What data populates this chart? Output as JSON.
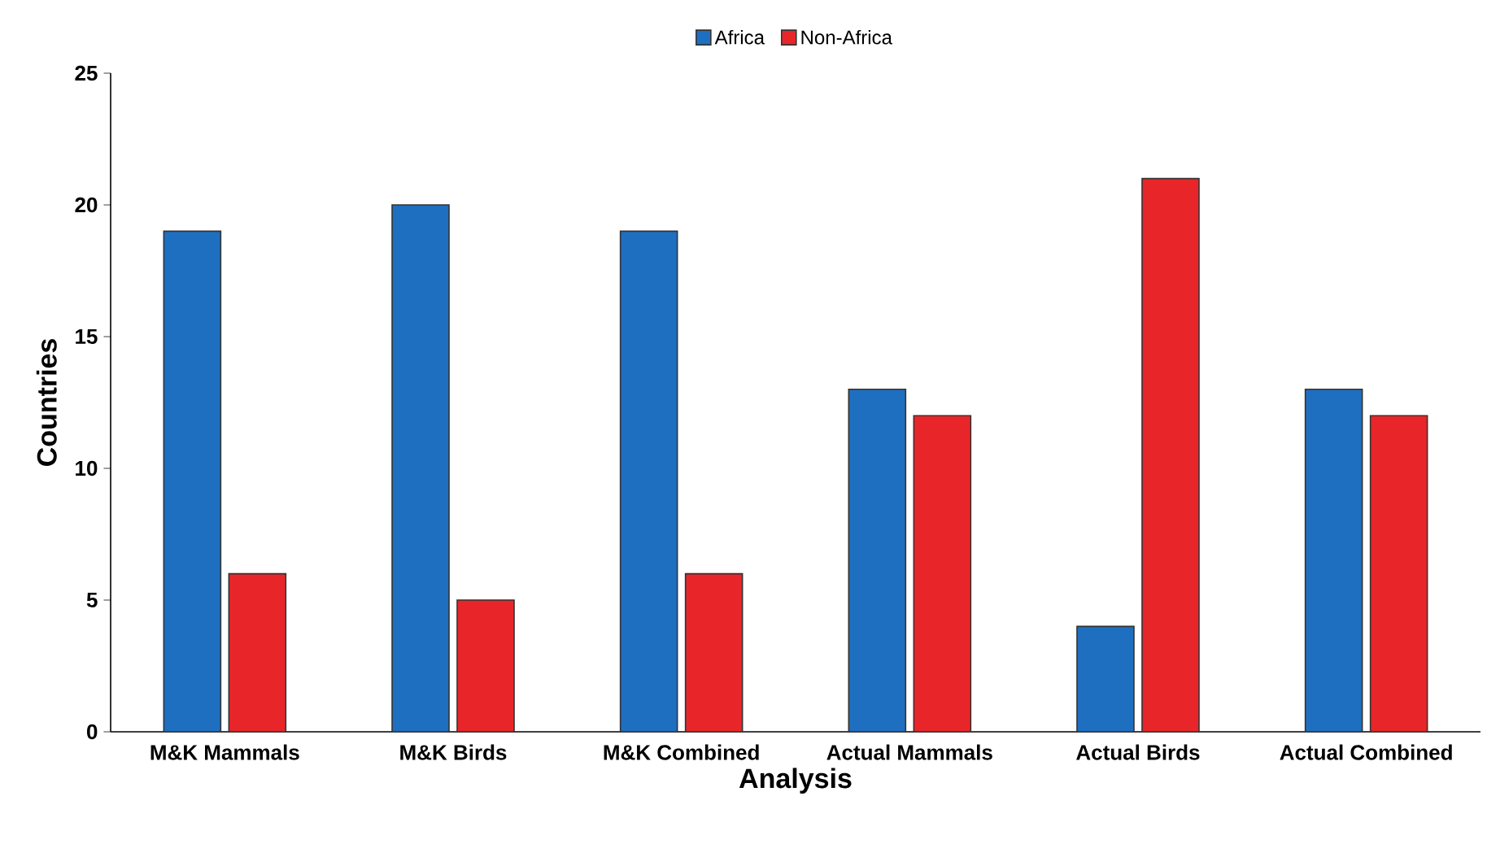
{
  "chart_data": {
    "type": "bar",
    "xlabel": "Analysis",
    "ylabel": "Countries",
    "categories": [
      "M&K Mammals",
      "M&K Birds",
      "M&K Combined",
      "Actual Mammals",
      "Actual Birds",
      "Actual Combined"
    ],
    "series": [
      {
        "name": "Africa",
        "color": "#1f6fc0",
        "values": [
          19,
          20,
          19,
          13,
          4,
          13
        ]
      },
      {
        "name": "Non-Africa",
        "color": "#e8262a",
        "values": [
          6,
          5,
          6,
          12,
          21,
          12
        ]
      }
    ],
    "ylim": [
      0,
      25
    ],
    "yticks": [
      0,
      5,
      10,
      15,
      20,
      25
    ],
    "grid": false,
    "legend": "top"
  }
}
